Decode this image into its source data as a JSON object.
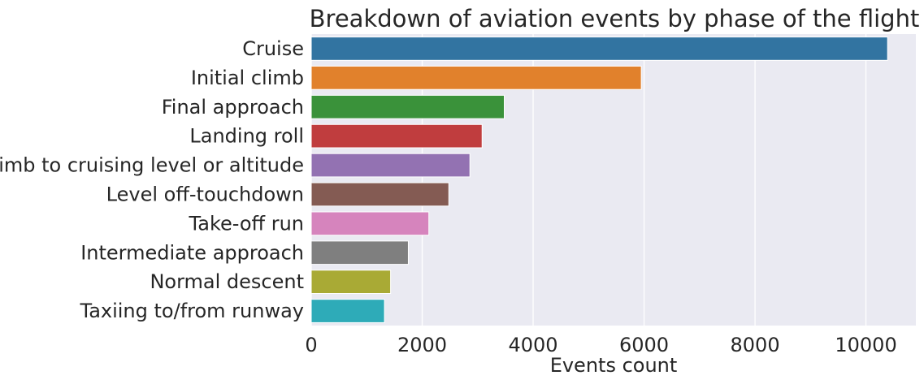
{
  "chart_data": {
    "type": "bar",
    "orientation": "horizontal",
    "title": "Breakdown of aviation events by phase of the flight",
    "xlabel": "Events count",
    "ylabel": "",
    "xlim": [
      0,
      10900
    ],
    "xticks": [
      0,
      2000,
      4000,
      6000,
      8000,
      10000
    ],
    "grid": true,
    "categories": [
      "Cruise",
      "Initial climb",
      "Final approach",
      "Landing roll",
      "Climb to cruising level or altitude",
      "Level off-touchdown",
      "Take-off run",
      "Intermediate approach",
      "Normal descent",
      "Taxiing to/from runway"
    ],
    "values": [
      10390,
      5950,
      3480,
      3080,
      2860,
      2480,
      2120,
      1750,
      1430,
      1320
    ],
    "colors": [
      "#3274a1",
      "#e1812c",
      "#3a923a",
      "#c03d3e",
      "#9372b2",
      "#845b53",
      "#d684bd",
      "#7f7f7f",
      "#a9aa35",
      "#2eabb8"
    ],
    "background": "#eaeaf2"
  }
}
